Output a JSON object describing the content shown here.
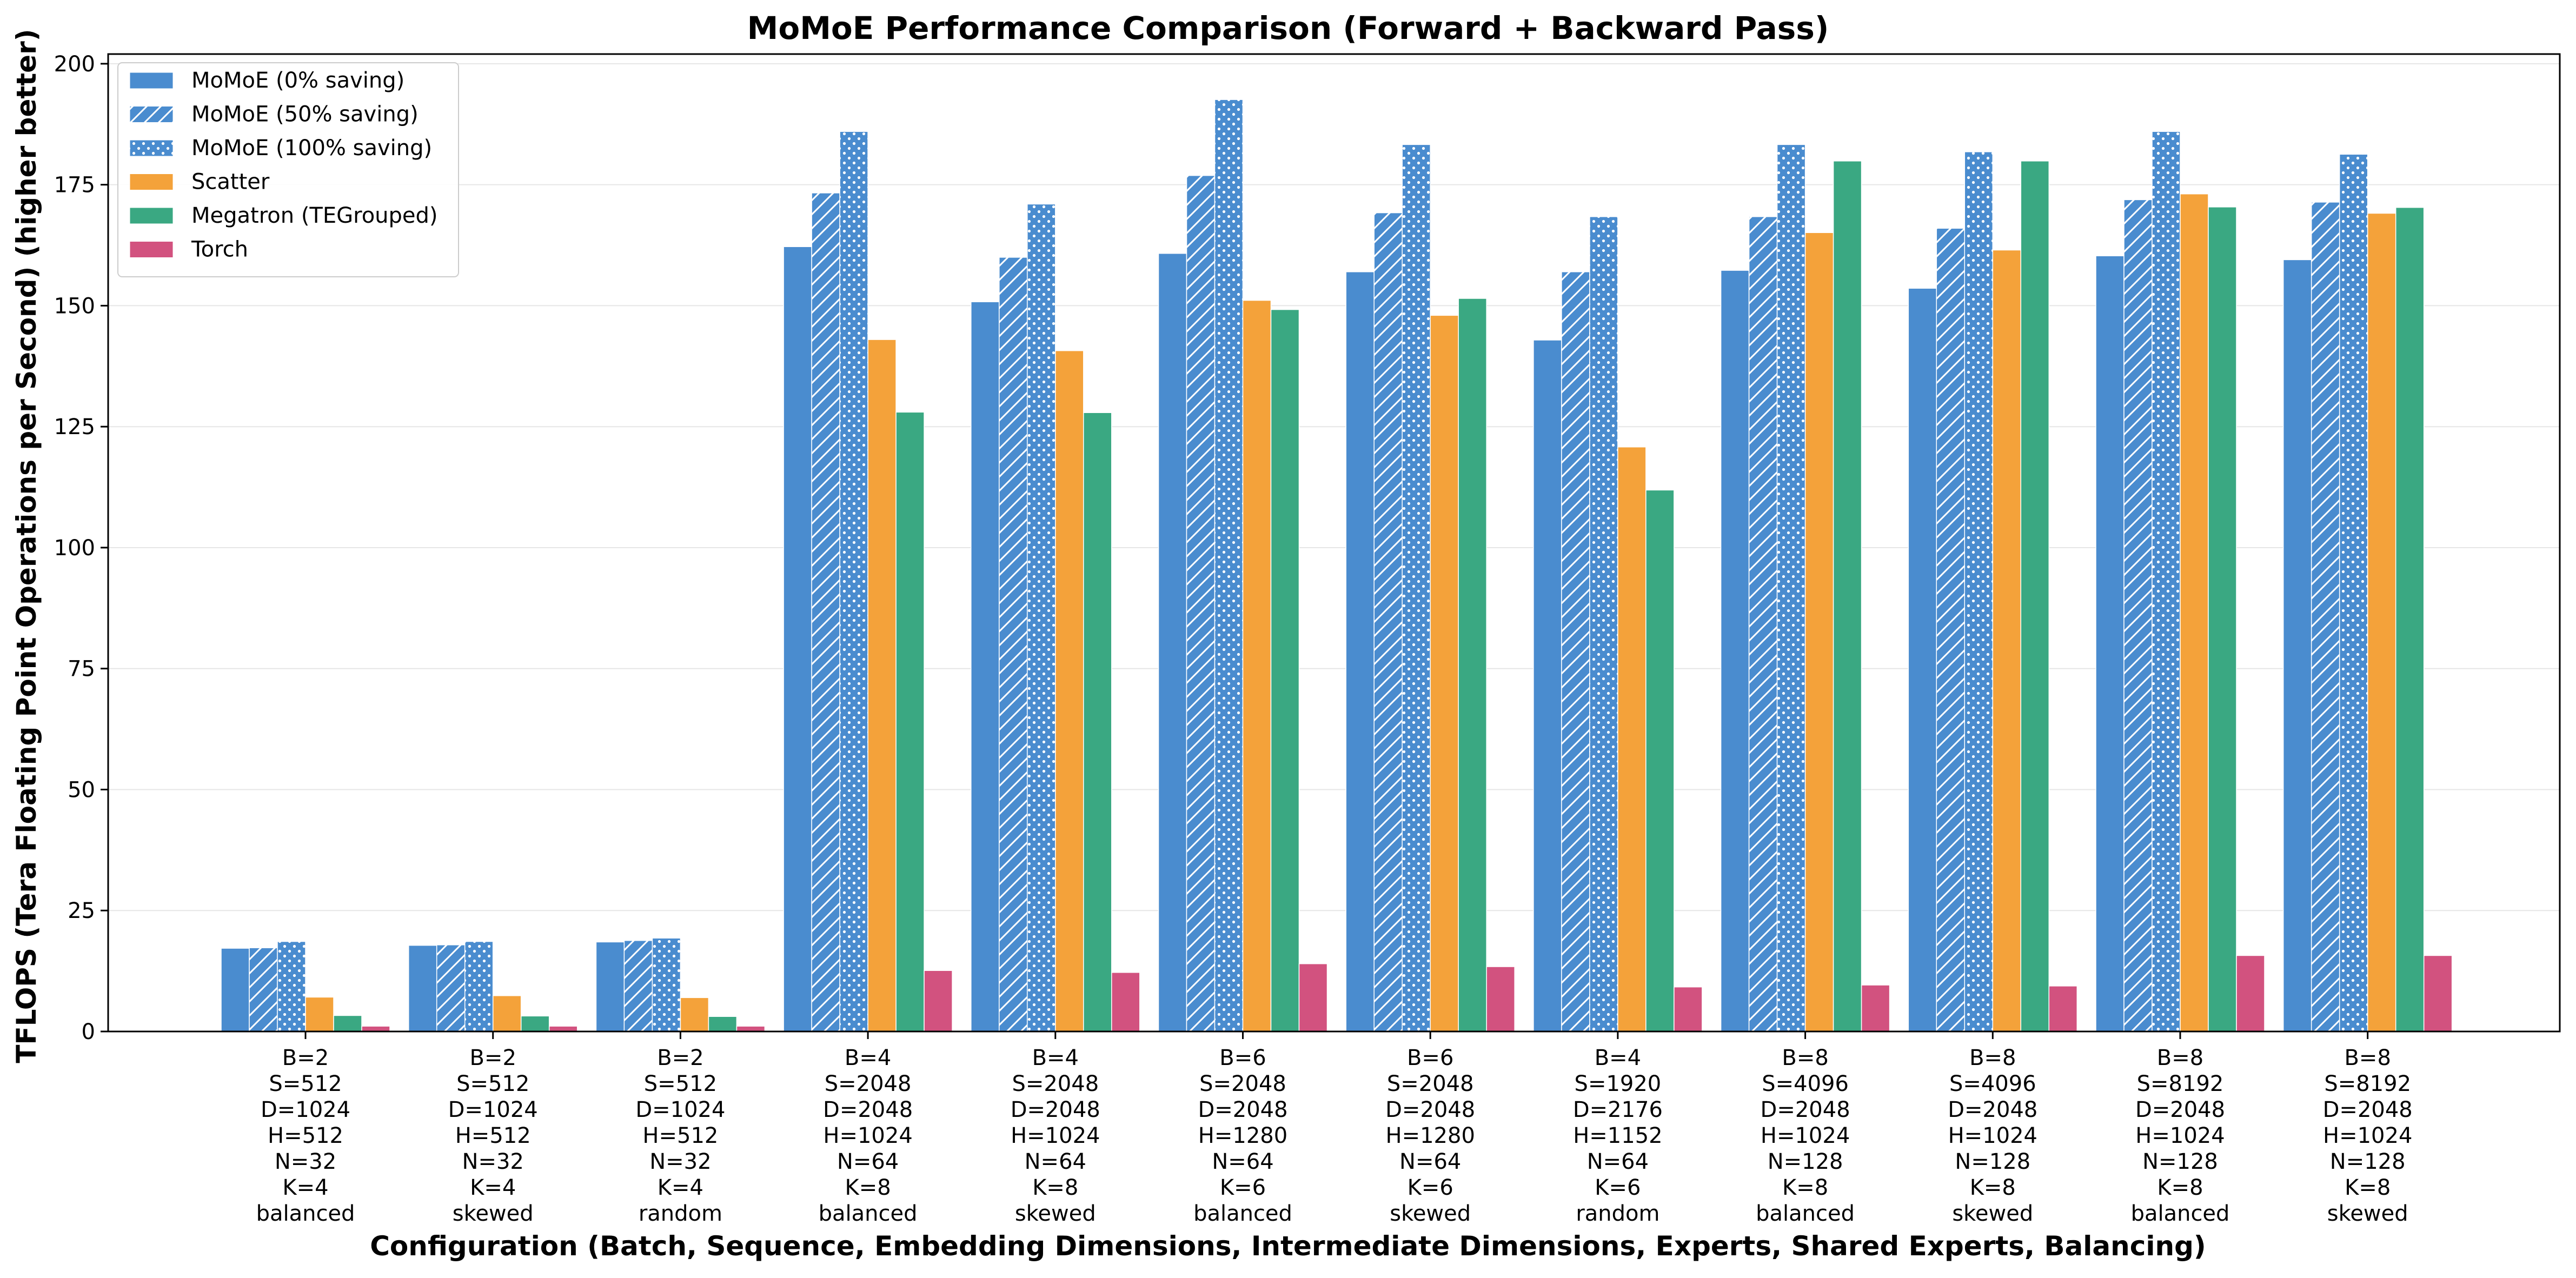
{
  "chart_data": {
    "type": "bar",
    "title": "MoMoE Performance Comparison (Forward + Backward Pass)",
    "xlabel": "Configuration (Batch, Sequence, Embedding Dimensions, Intermediate Dimensions, Experts, Shared Experts, Balancing)",
    "ylabel": "TFLOPS (Tera Floating Point Operations per Second) (higher better)",
    "ylim": [
      0,
      202
    ],
    "yticks": [
      0,
      25,
      50,
      75,
      100,
      125,
      150,
      175,
      200
    ],
    "grid": "horizontal",
    "legend_position": "top-left",
    "categories": [
      [
        "B=2",
        "S=512",
        "D=1024",
        "H=512",
        "N=32",
        "K=4",
        "balanced"
      ],
      [
        "B=2",
        "S=512",
        "D=1024",
        "H=512",
        "N=32",
        "K=4",
        "skewed"
      ],
      [
        "B=2",
        "S=512",
        "D=1024",
        "H=512",
        "N=32",
        "K=4",
        "random"
      ],
      [
        "B=4",
        "S=2048",
        "D=2048",
        "H=1024",
        "N=64",
        "K=8",
        "balanced"
      ],
      [
        "B=4",
        "S=2048",
        "D=2048",
        "H=1024",
        "N=64",
        "K=8",
        "skewed"
      ],
      [
        "B=6",
        "S=2048",
        "D=2048",
        "H=1280",
        "N=64",
        "K=6",
        "balanced"
      ],
      [
        "B=6",
        "S=2048",
        "D=2048",
        "H=1280",
        "N=64",
        "K=6",
        "skewed"
      ],
      [
        "B=4",
        "S=1920",
        "D=2176",
        "H=1152",
        "N=64",
        "K=6",
        "random"
      ],
      [
        "B=8",
        "S=4096",
        "D=2048",
        "H=1024",
        "N=128",
        "K=8",
        "balanced"
      ],
      [
        "B=8",
        "S=4096",
        "D=2048",
        "H=1024",
        "N=128",
        "K=8",
        "skewed"
      ],
      [
        "B=8",
        "S=8192",
        "D=2048",
        "H=1024",
        "N=128",
        "K=8",
        "balanced"
      ],
      [
        "B=8",
        "S=8192",
        "D=2048",
        "H=1024",
        "N=128",
        "K=8",
        "skewed"
      ]
    ],
    "series": [
      {
        "name": "MoMoE (0% saving)",
        "color": "#4a8ccf",
        "pattern": "solid",
        "values": [
          17.2,
          17.8,
          18.5,
          162.2,
          150.8,
          160.8,
          157.0,
          142.9,
          157.3,
          153.6,
          160.3,
          159.5
        ]
      },
      {
        "name": "MoMoE (50% saving)",
        "color": "#4a8ccf",
        "pattern": "hatch",
        "values": [
          17.3,
          17.9,
          18.8,
          173.3,
          160.0,
          176.9,
          169.2,
          157.0,
          168.4,
          166.0,
          171.9,
          171.4
        ]
      },
      {
        "name": "MoMoE (100% saving)",
        "color": "#4a8ccf",
        "pattern": "dots",
        "values": [
          18.6,
          18.6,
          19.3,
          186.0,
          171.0,
          192.6,
          183.3,
          168.4,
          183.3,
          181.8,
          186.0,
          181.3
        ]
      },
      {
        "name": "Scatter",
        "color": "#f4a23a",
        "pattern": "solid",
        "values": [
          7.1,
          7.4,
          7.0,
          143.0,
          140.7,
          151.1,
          148.0,
          120.8,
          165.1,
          161.5,
          173.1,
          169.1
        ]
      },
      {
        "name": "Megatron (TEGrouped)",
        "color": "#3aa882",
        "pattern": "solid",
        "values": [
          3.3,
          3.2,
          3.1,
          128.0,
          127.9,
          149.2,
          151.5,
          111.9,
          179.9,
          179.9,
          170.4,
          170.3
        ]
      },
      {
        "name": "Torch",
        "color": "#d2527f",
        "pattern": "solid",
        "values": [
          1.1,
          1.1,
          1.1,
          12.6,
          12.2,
          14.0,
          13.4,
          9.2,
          9.6,
          9.4,
          15.7,
          15.7
        ]
      }
    ]
  }
}
